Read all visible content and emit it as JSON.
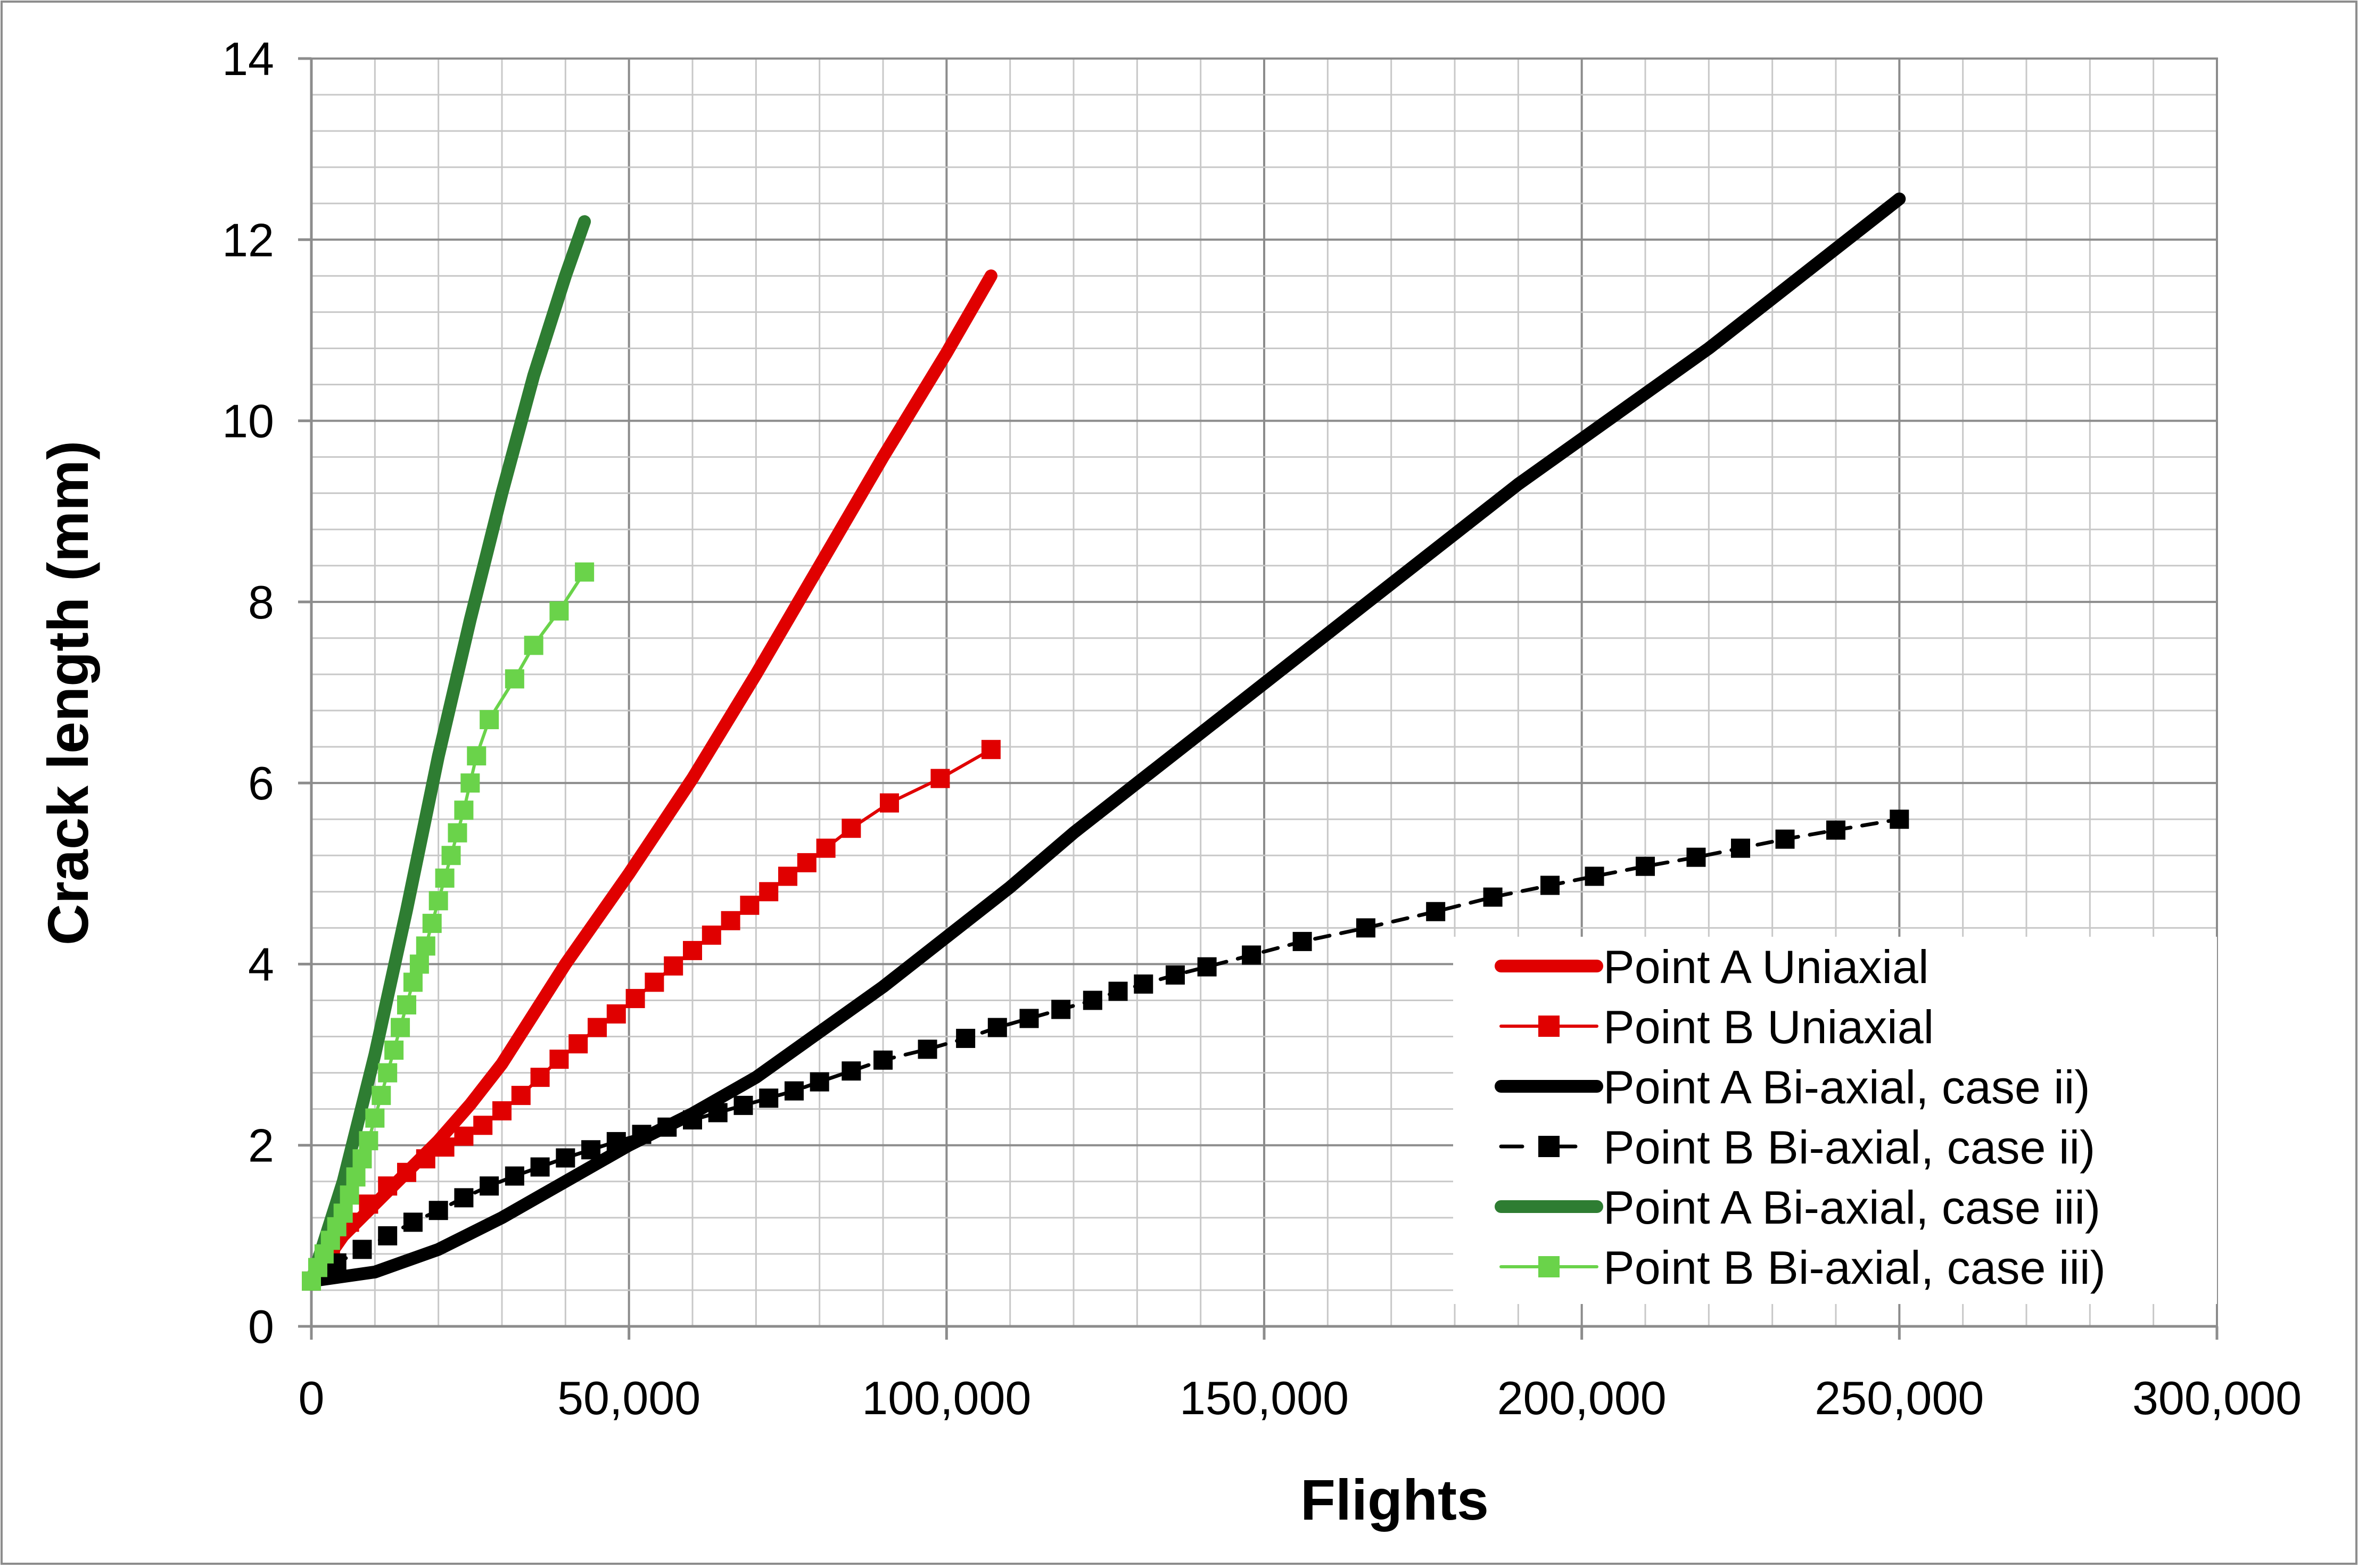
{
  "chart_data": {
    "type": "line",
    "title": "",
    "xlabel": "Flights",
    "ylabel": "Crack length (mm)",
    "xlim": [
      0,
      300000
    ],
    "ylim": [
      0,
      14
    ],
    "x_ticks": [
      0,
      50000,
      100000,
      150000,
      200000,
      250000,
      300000
    ],
    "x_tick_labels": [
      "0",
      "50,000",
      "100,000",
      "150,000",
      "200,000",
      "250,000",
      "300,000"
    ],
    "y_ticks": [
      0,
      2,
      4,
      6,
      8,
      10,
      12,
      14
    ],
    "y_tick_labels": [
      "0",
      "2",
      "4",
      "6",
      "8",
      "10",
      "12",
      "14"
    ],
    "grid": true,
    "legend_position": "bottom-right",
    "series": [
      {
        "name": "Point A Uniaxial",
        "color": "#e00000",
        "style": "thick-line",
        "marker": "none",
        "points": [
          [
            0,
            0.5
          ],
          [
            5000,
            1.0
          ],
          [
            10000,
            1.35
          ],
          [
            15000,
            1.7
          ],
          [
            20000,
            2.05
          ],
          [
            25000,
            2.45
          ],
          [
            30000,
            2.9
          ],
          [
            35000,
            3.45
          ],
          [
            40000,
            4.0
          ],
          [
            50000,
            5.0
          ],
          [
            60000,
            6.05
          ],
          [
            70000,
            7.2
          ],
          [
            80000,
            8.4
          ],
          [
            90000,
            9.6
          ],
          [
            100000,
            10.75
          ],
          [
            107000,
            11.6
          ]
        ]
      },
      {
        "name": "Point B Uniaxial",
        "color": "#e00000",
        "style": "thin-line",
        "marker": "square",
        "points": [
          [
            0,
            0.5
          ],
          [
            3000,
            0.9
          ],
          [
            6000,
            1.15
          ],
          [
            9000,
            1.35
          ],
          [
            12000,
            1.55
          ],
          [
            15000,
            1.7
          ],
          [
            18000,
            1.85
          ],
          [
            21000,
            1.98
          ],
          [
            24000,
            2.1
          ],
          [
            27000,
            2.22
          ],
          [
            30000,
            2.38
          ],
          [
            33000,
            2.55
          ],
          [
            36000,
            2.75
          ],
          [
            39000,
            2.95
          ],
          [
            42000,
            3.12
          ],
          [
            45000,
            3.3
          ],
          [
            48000,
            3.45
          ],
          [
            51000,
            3.62
          ],
          [
            54000,
            3.8
          ],
          [
            57000,
            3.98
          ],
          [
            60000,
            4.15
          ],
          [
            63000,
            4.32
          ],
          [
            66000,
            4.48
          ],
          [
            69000,
            4.65
          ],
          [
            72000,
            4.8
          ],
          [
            75000,
            4.97
          ],
          [
            78000,
            5.12
          ],
          [
            81000,
            5.28
          ],
          [
            85000,
            5.5
          ],
          [
            91000,
            5.78
          ],
          [
            99000,
            6.05
          ],
          [
            107000,
            6.37
          ]
        ]
      },
      {
        "name": "Point A Bi-axial, case ii)",
        "color": "#000000",
        "style": "thick-line",
        "marker": "none",
        "points": [
          [
            0,
            0.5
          ],
          [
            10000,
            0.6
          ],
          [
            20000,
            0.85
          ],
          [
            30000,
            1.2
          ],
          [
            40000,
            1.6
          ],
          [
            50000,
            2.0
          ],
          [
            60000,
            2.35
          ],
          [
            70000,
            2.75
          ],
          [
            80000,
            3.25
          ],
          [
            90000,
            3.75
          ],
          [
            100000,
            4.3
          ],
          [
            110000,
            4.85
          ],
          [
            120000,
            5.45
          ],
          [
            130000,
            6.0
          ],
          [
            140000,
            6.55
          ],
          [
            150000,
            7.1
          ],
          [
            160000,
            7.65
          ],
          [
            170000,
            8.2
          ],
          [
            180000,
            8.75
          ],
          [
            190000,
            9.3
          ],
          [
            200000,
            9.8
          ],
          [
            210000,
            10.3
          ],
          [
            220000,
            10.8
          ],
          [
            230000,
            11.35
          ],
          [
            240000,
            11.9
          ],
          [
            250000,
            12.45
          ]
        ]
      },
      {
        "name": "Point B Bi-axial, case ii)",
        "color": "#000000",
        "style": "dashed-line",
        "marker": "square",
        "points": [
          [
            0,
            0.5
          ],
          [
            4000,
            0.7
          ],
          [
            8000,
            0.85
          ],
          [
            12000,
            1.0
          ],
          [
            16000,
            1.15
          ],
          [
            20000,
            1.28
          ],
          [
            24000,
            1.42
          ],
          [
            28000,
            1.55
          ],
          [
            32000,
            1.66
          ],
          [
            36000,
            1.76
          ],
          [
            40000,
            1.86
          ],
          [
            44000,
            1.95
          ],
          [
            48000,
            2.04
          ],
          [
            52000,
            2.12
          ],
          [
            56000,
            2.2
          ],
          [
            60000,
            2.28
          ],
          [
            64000,
            2.36
          ],
          [
            68000,
            2.44
          ],
          [
            72000,
            2.52
          ],
          [
            76000,
            2.6
          ],
          [
            80000,
            2.7
          ],
          [
            85000,
            2.82
          ],
          [
            90000,
            2.94
          ],
          [
            97000,
            3.06
          ],
          [
            103000,
            3.18
          ],
          [
            108000,
            3.3
          ],
          [
            113000,
            3.4
          ],
          [
            118000,
            3.5
          ],
          [
            123000,
            3.6
          ],
          [
            127000,
            3.7
          ],
          [
            131000,
            3.78
          ],
          [
            136000,
            3.88
          ],
          [
            141000,
            3.97
          ],
          [
            148000,
            4.1
          ],
          [
            156000,
            4.25
          ],
          [
            166000,
            4.4
          ],
          [
            177000,
            4.58
          ],
          [
            186000,
            4.74
          ],
          [
            195000,
            4.87
          ],
          [
            202000,
            4.97
          ],
          [
            210000,
            5.08
          ],
          [
            218000,
            5.18
          ],
          [
            225000,
            5.28
          ],
          [
            232000,
            5.38
          ],
          [
            240000,
            5.48
          ],
          [
            250000,
            5.6
          ]
        ]
      },
      {
        "name": "Point A Bi-axial, case iii)",
        "color": "#2e7d32",
        "style": "thick-line",
        "marker": "none",
        "points": [
          [
            0,
            0.5
          ],
          [
            5000,
            1.6
          ],
          [
            10000,
            3.0
          ],
          [
            15000,
            4.6
          ],
          [
            20000,
            6.3
          ],
          [
            25000,
            7.8
          ],
          [
            30000,
            9.2
          ],
          [
            35000,
            10.5
          ],
          [
            40000,
            11.6
          ],
          [
            43000,
            12.2
          ]
        ]
      },
      {
        "name": "Point B Bi-axial, case iii)",
        "color": "#6ad34a",
        "style": "thin-line",
        "marker": "square",
        "points": [
          [
            0,
            0.5
          ],
          [
            1000,
            0.65
          ],
          [
            2000,
            0.8
          ],
          [
            3000,
            0.95
          ],
          [
            4000,
            1.1
          ],
          [
            5000,
            1.25
          ],
          [
            6000,
            1.45
          ],
          [
            7000,
            1.65
          ],
          [
            8000,
            1.85
          ],
          [
            9000,
            2.05
          ],
          [
            10000,
            2.3
          ],
          [
            11000,
            2.55
          ],
          [
            12000,
            2.8
          ],
          [
            13000,
            3.05
          ],
          [
            14000,
            3.3
          ],
          [
            15000,
            3.55
          ],
          [
            16000,
            3.8
          ],
          [
            17000,
            4.0
          ],
          [
            18000,
            4.2
          ],
          [
            19000,
            4.45
          ],
          [
            20000,
            4.7
          ],
          [
            21000,
            4.95
          ],
          [
            22000,
            5.2
          ],
          [
            23000,
            5.45
          ],
          [
            24000,
            5.7
          ],
          [
            25000,
            6.0
          ],
          [
            26000,
            6.3
          ],
          [
            28000,
            6.7
          ],
          [
            32000,
            7.15
          ],
          [
            35000,
            7.52
          ],
          [
            39000,
            7.9
          ],
          [
            43000,
            8.33
          ]
        ]
      }
    ]
  }
}
